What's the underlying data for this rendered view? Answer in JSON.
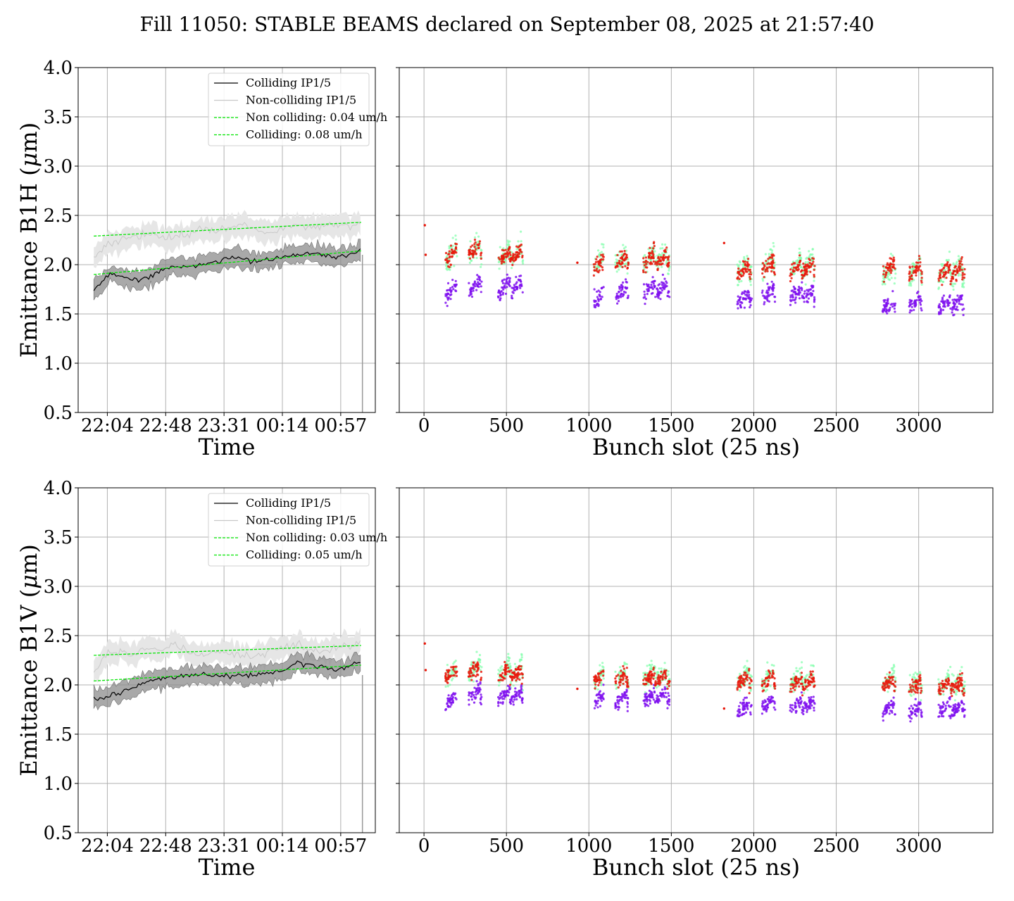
{
  "suptitle": "Fill 11050: STABLE BEAMS declared on September 08, 2025 at 21:57:40",
  "colors": {
    "colliding": "#000000",
    "colliding_band": "#8c8c8c",
    "noncolliding": "#c8c8c8",
    "noncolliding_band": "#e6e6e6",
    "fit": "#00e600",
    "scatter_red": "#e8170a",
    "scatter_purple": "#7f10ee",
    "scatter_green": "#7fffaa",
    "grid": "#b0b0b0"
  },
  "chart_data": [
    {
      "id": "b1h_time",
      "type": "line",
      "title": "",
      "xlabel": "Time",
      "ylabel": "Emittance B1H ($\\mu$m)",
      "x_ticks": [
        "22:04",
        "22:48",
        "23:31",
        "00:14",
        "00:57"
      ],
      "y_ticks": [
        "0.5",
        "1.0",
        "1.5",
        "2.0",
        "2.5",
        "3.0",
        "3.5",
        "4.0"
      ],
      "ylim": [
        0.5,
        4.0
      ],
      "xlim_minutes": [
        -21.5,
        197.5
      ],
      "x_unit": "minutes after 22:04",
      "grid": true,
      "legend_position": "upper right",
      "series": [
        {
          "name": "Colliding IP1/5",
          "style": "solid",
          "x": [
            -10,
            0,
            10,
            20,
            30,
            40,
            50,
            60,
            70,
            80,
            90,
            100,
            110,
            120,
            130,
            140,
            150,
            160,
            170,
            180,
            187
          ],
          "y": [
            1.72,
            1.9,
            1.88,
            1.84,
            1.87,
            1.95,
            1.97,
            1.98,
            2.0,
            2.03,
            2.07,
            2.06,
            2.03,
            2.05,
            2.08,
            2.1,
            2.12,
            2.1,
            2.08,
            2.1,
            2.18
          ]
        },
        {
          "name": "Non-colliding IP1/5",
          "style": "solid",
          "x": [
            -10,
            0,
            10,
            20,
            30,
            40,
            50,
            60,
            70,
            80,
            90,
            100,
            110,
            120,
            130,
            140,
            150,
            160,
            170,
            180,
            187
          ],
          "y": [
            2.05,
            2.22,
            2.25,
            2.28,
            2.3,
            2.3,
            2.28,
            2.32,
            2.36,
            2.34,
            2.38,
            2.42,
            2.35,
            2.33,
            2.37,
            2.4,
            2.38,
            2.4,
            2.41,
            2.38,
            2.42
          ]
        },
        {
          "name": "Non colliding: 0.04 um/h",
          "style": "dashed",
          "x": [
            -10,
            187
          ],
          "y": [
            2.29,
            2.43
          ]
        },
        {
          "name": "Colliding: 0.08 um/h",
          "style": "dashed",
          "x": [
            -10,
            187
          ],
          "y": [
            1.9,
            2.14
          ]
        }
      ],
      "bands": [
        {
          "series": "Colliding IP1/5",
          "half_width": 0.09
        },
        {
          "series": "Non-colliding IP1/5",
          "half_width": 0.11
        }
      ]
    },
    {
      "id": "b1h_bunch",
      "type": "scatter",
      "title": "",
      "xlabel": "Bunch slot (25 ns)",
      "ylabel": "",
      "x_ticks": [
        "0",
        "500",
        "1000",
        "1500",
        "2000",
        "2500",
        "3000"
      ],
      "xlim": [
        -150,
        3450
      ],
      "ylim": [
        0.5,
        4.0
      ],
      "grid": true,
      "trains": [
        [
          130,
          200
        ],
        [
          270,
          350
        ],
        [
          450,
          600
        ],
        [
          1030,
          1090
        ],
        [
          1160,
          1240
        ],
        [
          1330,
          1490
        ],
        [
          1900,
          1990
        ],
        [
          2050,
          2130
        ],
        [
          2220,
          2370
        ],
        [
          2780,
          2860
        ],
        [
          2940,
          3020
        ],
        [
          3120,
          3280
        ]
      ],
      "pilots": [
        [
          5,
          2.4
        ],
        [
          10,
          2.1
        ],
        [
          930,
          2.02
        ],
        [
          1820,
          2.22
        ]
      ],
      "series": [
        {
          "color": "scatter_red",
          "levels": [
            2.1,
            2.15,
            2.1,
            2.02,
            2.04,
            2.06,
            1.95,
            2.0,
            1.97,
            1.97,
            1.95,
            1.93
          ],
          "spread": 0.17
        },
        {
          "color": "scatter_purple",
          "levels": [
            1.74,
            1.78,
            1.78,
            1.68,
            1.73,
            1.75,
            1.65,
            1.72,
            1.7,
            1.6,
            1.62,
            1.6
          ],
          "spread": 0.17
        },
        {
          "color": "scatter_green",
          "levels": [
            2.12,
            2.15,
            2.1,
            2.05,
            2.06,
            2.08,
            1.98,
            2.02,
            1.99,
            1.95,
            1.95,
            1.93
          ],
          "spread": 0.24
        }
      ]
    },
    {
      "id": "b1v_time",
      "type": "line",
      "title": "",
      "xlabel": "Time",
      "ylabel": "Emittance B1V ($\\mu$m)",
      "x_ticks": [
        "22:04",
        "22:48",
        "23:31",
        "00:14",
        "00:57"
      ],
      "y_ticks": [
        "0.5",
        "1.0",
        "1.5",
        "2.0",
        "2.5",
        "3.0",
        "3.5",
        "4.0"
      ],
      "ylim": [
        0.5,
        4.0
      ],
      "xlim_minutes": [
        -21.5,
        197.5
      ],
      "x_unit": "minutes after 22:04",
      "grid": true,
      "legend_position": "upper right",
      "series": [
        {
          "name": "Colliding IP1/5",
          "style": "solid",
          "x": [
            -10,
            0,
            10,
            20,
            30,
            40,
            50,
            60,
            70,
            80,
            90,
            100,
            110,
            120,
            130,
            140,
            150,
            160,
            170,
            180,
            187
          ],
          "y": [
            1.85,
            1.88,
            1.93,
            1.97,
            2.03,
            2.07,
            2.08,
            2.1,
            2.11,
            2.1,
            2.08,
            2.1,
            2.1,
            2.12,
            2.15,
            2.22,
            2.2,
            2.18,
            2.15,
            2.2,
            2.24
          ]
        },
        {
          "name": "Non-colliding IP1/5",
          "style": "solid",
          "x": [
            -10,
            0,
            10,
            20,
            30,
            40,
            50,
            60,
            70,
            80,
            90,
            100,
            110,
            120,
            130,
            140,
            150,
            160,
            170,
            180,
            187
          ],
          "y": [
            2.12,
            2.3,
            2.35,
            2.3,
            2.38,
            2.36,
            2.4,
            2.35,
            2.3,
            2.35,
            2.32,
            2.3,
            2.28,
            2.35,
            2.38,
            2.42,
            2.35,
            2.33,
            2.38,
            2.4,
            2.42
          ]
        },
        {
          "name": "Non colliding: 0.03 um/h",
          "style": "dashed",
          "x": [
            -10,
            187
          ],
          "y": [
            2.3,
            2.4
          ]
        },
        {
          "name": "Colliding: 0.05 um/h",
          "style": "dashed",
          "x": [
            -10,
            187
          ],
          "y": [
            2.04,
            2.2
          ]
        }
      ],
      "bands": [
        {
          "series": "Colliding IP1/5",
          "half_width": 0.09
        },
        {
          "series": "Non-colliding IP1/5",
          "half_width": 0.11
        }
      ]
    },
    {
      "id": "b1v_bunch",
      "type": "scatter",
      "title": "",
      "xlabel": "Bunch slot (25 ns)",
      "ylabel": "",
      "x_ticks": [
        "0",
        "500",
        "1000",
        "1500",
        "2000",
        "2500",
        "3000"
      ],
      "xlim": [
        -150,
        3450
      ],
      "ylim": [
        0.5,
        4.0
      ],
      "grid": true,
      "trains": [
        [
          130,
          200
        ],
        [
          270,
          350
        ],
        [
          450,
          600
        ],
        [
          1030,
          1090
        ],
        [
          1160,
          1240
        ],
        [
          1330,
          1490
        ],
        [
          1900,
          1990
        ],
        [
          2050,
          2130
        ],
        [
          2220,
          2370
        ],
        [
          2780,
          2860
        ],
        [
          2940,
          3020
        ],
        [
          3120,
          3280
        ]
      ],
      "pilots": [
        [
          5,
          2.42
        ],
        [
          10,
          2.15
        ],
        [
          930,
          1.96
        ],
        [
          1820,
          1.76
        ]
      ],
      "series": [
        {
          "color": "scatter_red",
          "levels": [
            2.12,
            2.15,
            2.12,
            2.08,
            2.07,
            2.07,
            2.06,
            2.05,
            2.03,
            2.02,
            2.0,
            2.0
          ],
          "spread": 0.15
        },
        {
          "color": "scatter_purple",
          "levels": [
            1.85,
            1.92,
            1.9,
            1.86,
            1.87,
            1.88,
            1.78,
            1.82,
            1.8,
            1.75,
            1.75,
            1.76
          ],
          "spread": 0.15
        },
        {
          "color": "scatter_green",
          "levels": [
            2.14,
            2.17,
            2.14,
            2.1,
            2.09,
            2.1,
            2.08,
            2.07,
            2.06,
            2.04,
            2.02,
            2.02
          ],
          "spread": 0.22
        }
      ]
    }
  ]
}
